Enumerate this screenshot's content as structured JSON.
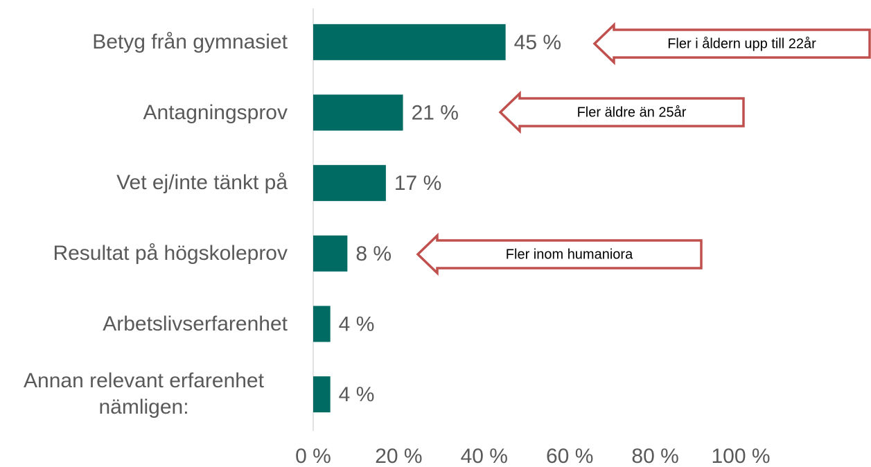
{
  "chart_data": {
    "type": "barh",
    "categories": [
      "Betyg från gymnasiet",
      "Antagningsprov",
      "Vet ej/inte tänkt på",
      "Resultat på högskoleprov",
      "Arbetslivserfarenhet",
      "Annan relevant erfarenhet nämligen:"
    ],
    "values": [
      45,
      21,
      17,
      8,
      4,
      4
    ],
    "value_labels": [
      "45 %",
      "21 %",
      "17 %",
      "8 %",
      "4 %",
      "4 %"
    ],
    "color": "#006b63",
    "xlim": [
      0,
      100
    ],
    "xticks": [
      {
        "value": 0,
        "label": "0 %"
      },
      {
        "value": 20,
        "label": "20 %"
      },
      {
        "value": 40,
        "label": "40 %"
      },
      {
        "value": 60,
        "label": "60 %"
      },
      {
        "value": 80,
        "label": "80 %"
      },
      {
        "value": 100,
        "label": "100 %"
      }
    ],
    "grid": false,
    "annotations": [
      "Fler i åldern upp till 22år",
      "Fler äldre än 25år",
      "Fler inom humaniora"
    ]
  }
}
